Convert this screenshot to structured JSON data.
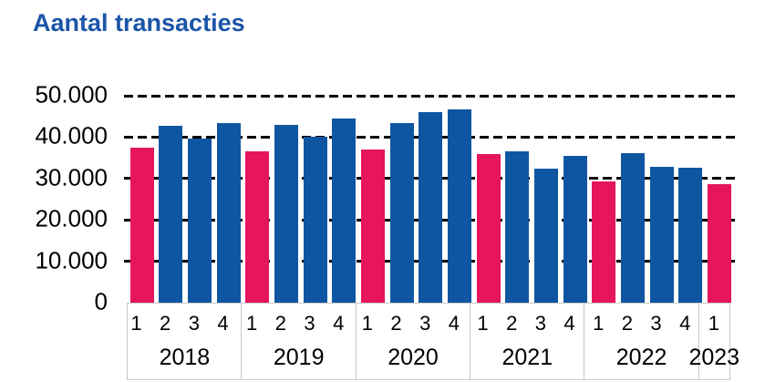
{
  "chart_data": {
    "type": "bar",
    "title": "Aantal transacties",
    "xlabel": "",
    "ylabel": "",
    "ylim": [
      0,
      50000
    ],
    "ytick_interval": 10000,
    "ytick_labels": [
      "0",
      "10.000",
      "20.000",
      "30.000",
      "40.000",
      "50.000"
    ],
    "grid": "horizontal dashed gridlines at 10.000 through 50.000, drawn behind bars",
    "legend_position": "none",
    "highlighted_quarter": "1",
    "colors": {
      "q1_highlight": "#E6155D",
      "default_bar": "#0F56A2",
      "title": "#1B55A8",
      "gridline": "#000000",
      "axis_box_border": "#C9C9C9",
      "label_text": "#000000"
    },
    "groups": [
      {
        "year": "2018",
        "quarters": [
          "1",
          "2",
          "3",
          "4"
        ],
        "values": [
          37500,
          42700,
          39600,
          43500
        ]
      },
      {
        "year": "2019",
        "quarters": [
          "1",
          "2",
          "3",
          "4"
        ],
        "values": [
          36600,
          43000,
          40100,
          44600
        ]
      },
      {
        "year": "2020",
        "quarters": [
          "1",
          "2",
          "3",
          "4"
        ],
        "values": [
          37000,
          43500,
          46100,
          46600
        ]
      },
      {
        "year": "2021",
        "quarters": [
          "1",
          "2",
          "3",
          "4"
        ],
        "values": [
          35800,
          36600,
          32400,
          35500
        ]
      },
      {
        "year": "2022",
        "quarters": [
          "1",
          "2",
          "3",
          "4"
        ],
        "values": [
          29300,
          36100,
          32800,
          32600
        ]
      },
      {
        "year": "2023",
        "quarters": [
          "1"
        ],
        "values": [
          28600
        ]
      }
    ]
  }
}
